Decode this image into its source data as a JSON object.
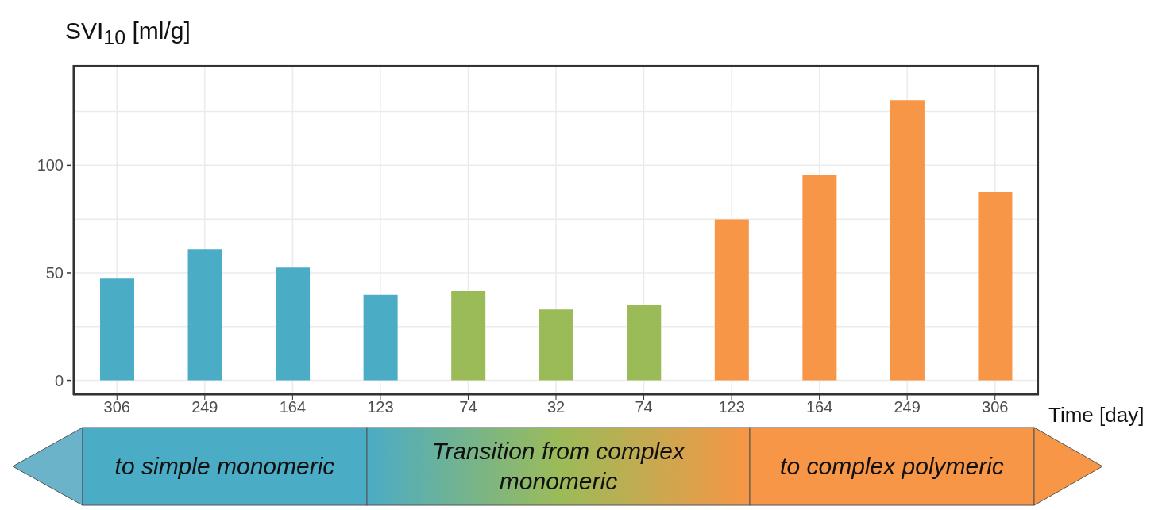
{
  "chart_data": {
    "type": "bar",
    "ylabel": "SVI$_{10}$  [ml/g]",
    "xlabel": "Time [day]",
    "categories": [
      "306",
      "249",
      "164",
      "123",
      "74",
      "32",
      "74",
      "123",
      "164",
      "249",
      "306"
    ],
    "values": [
      47.3,
      61,
      52.5,
      39.8,
      41.5,
      32.9,
      34.9,
      74.9,
      95.3,
      130.3,
      87.6
    ],
    "colors": [
      "#4bacc6",
      "#4bacc6",
      "#4bacc6",
      "#4bacc6",
      "#9bbb59",
      "#9bbb59",
      "#9bbb59",
      "#f79646",
      "#f79646",
      "#f79646",
      "#f79646"
    ],
    "ylim": [
      -6.8,
      146.6
    ],
    "yticks": [
      0,
      {
        "value": 25,
        "label": null
      },
      50,
      {
        "value": 75,
        "label": null
      },
      100,
      {
        "value": 125,
        "label": null
      }
    ],
    "grid": true,
    "annotations": [
      "to simple monomeric",
      "Transition from complex monomeric",
      "to complex polymeric"
    ]
  }
}
